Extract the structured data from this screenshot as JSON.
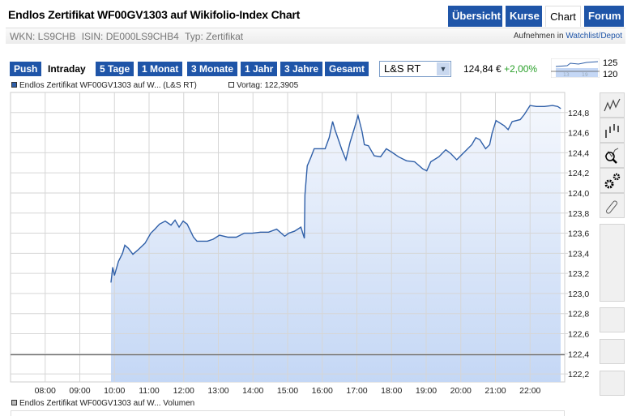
{
  "header": {
    "title": "Endlos Zertifikat WF00GV1303 auf Wikifolio-Index Chart",
    "tabs": [
      {
        "label": "Übersicht",
        "active": false
      },
      {
        "label": "Kurse",
        "active": false
      },
      {
        "label": "Chart",
        "active": true
      },
      {
        "label": "Forum",
        "active": false
      }
    ]
  },
  "info": {
    "wkn": "WKN: LS9CHB",
    "isin": "ISIN: DE000LS9CHB4",
    "typ": "Typ: Zertifikat",
    "watch_prefix": "Aufnehmen in",
    "watch_link": "Watchlist/Depot"
  },
  "ranges": [
    {
      "label": "Push",
      "active": false
    },
    {
      "label": "Intraday",
      "active": true
    },
    {
      "label": "5 Tage",
      "active": false
    },
    {
      "label": "1 Monat",
      "active": false
    },
    {
      "label": "3 Monate",
      "active": false
    },
    {
      "label": "1 Jahr",
      "active": false
    },
    {
      "label": "3 Jahre",
      "active": false
    },
    {
      "label": "Gesamt",
      "active": false
    }
  ],
  "exchange_select": {
    "value": "L&S RT"
  },
  "quote": {
    "price": "124,84 €",
    "change": "+2,00%",
    "change_color": "#2aa02a"
  },
  "sparkline": {
    "labels": [
      "125",
      "120"
    ],
    "x_labels": [
      "13",
      "19"
    ]
  },
  "legend": {
    "series": "Endlos Zertifikat WF00GV1303 auf W... (L&S RT)",
    "prev": "Vortag: 122,3905",
    "volume": "Endlos Zertifikat WF00GV1303 auf W... Volumen"
  },
  "tools": [
    {
      "icon": "line-chart-icon"
    },
    {
      "icon": "ohlc-chart-icon"
    },
    {
      "icon": "zoom-chart-icon"
    },
    {
      "icon": "settings-icon"
    },
    {
      "icon": "link-icon"
    }
  ],
  "colors": {
    "brand": "#1f55a8",
    "line": "#2f5fa8",
    "fill_top": "#f4f7fd",
    "fill_bottom": "#c4d7f5"
  },
  "chart_data": {
    "type": "area",
    "xlim": [
      "07:00",
      "23:00"
    ],
    "ylim": [
      122.12,
      125.0
    ],
    "grid": true,
    "x_ticks": [
      "08:00",
      "09:00",
      "10:00",
      "11:00",
      "12:00",
      "13:00",
      "14:00",
      "15:00",
      "16:00",
      "17:00",
      "18:00",
      "19:00",
      "20:00",
      "21:00",
      "22:00"
    ],
    "y_ticks": [
      "124,8",
      "124,6",
      "124,4",
      "124,2",
      "124,0",
      "123,8",
      "123,6",
      "123,4",
      "123,2",
      "123,0",
      "122,8",
      "122,6",
      "122,4",
      "122,2"
    ],
    "reference_line": 122.3905,
    "x": [
      "09:54",
      "09:57",
      "10:00",
      "10:07",
      "10:14",
      "10:18",
      "10:24",
      "10:32",
      "10:42",
      "10:53",
      "11:03",
      "11:10",
      "11:18",
      "11:28",
      "11:38",
      "11:45",
      "11:52",
      "11:59",
      "12:06",
      "12:17",
      "12:23",
      "12:41",
      "12:51",
      "13:02",
      "13:17",
      "13:31",
      "13:45",
      "13:59",
      "14:13",
      "14:27",
      "14:41",
      "14:55",
      "15:02",
      "15:12",
      "15:23",
      "15:29",
      "15:30",
      "15:34",
      "15:40",
      "15:46",
      "16:05",
      "16:12",
      "16:18",
      "16:22",
      "16:28",
      "16:34",
      "16:41",
      "16:48",
      "16:56",
      "17:02",
      "17:09",
      "17:13",
      "17:20",
      "17:30",
      "17:41",
      "17:51",
      "18:02",
      "18:12",
      "18:26",
      "18:40",
      "18:54",
      "19:01",
      "19:08",
      "19:22",
      "19:34",
      "19:43",
      "19:53",
      "20:05",
      "20:19",
      "20:26",
      "20:33",
      "20:43",
      "20:50",
      "20:54",
      "21:01",
      "21:15",
      "21:22",
      "21:29",
      "21:43",
      "21:50",
      "22:00",
      "22:11",
      "22:25",
      "22:39",
      "22:48",
      "22:53"
    ],
    "y": [
      123.11,
      123.26,
      123.18,
      123.32,
      123.4,
      123.48,
      123.45,
      123.39,
      123.44,
      123.5,
      123.6,
      123.64,
      123.69,
      123.72,
      123.68,
      123.73,
      123.66,
      123.72,
      123.69,
      123.56,
      123.52,
      123.52,
      123.54,
      123.58,
      123.56,
      123.56,
      123.6,
      123.6,
      123.61,
      123.61,
      123.64,
      123.57,
      123.6,
      123.62,
      123.66,
      123.55,
      123.98,
      124.27,
      124.35,
      124.44,
      124.44,
      124.55,
      124.71,
      124.63,
      124.53,
      124.43,
      124.33,
      124.5,
      124.65,
      124.77,
      124.61,
      124.48,
      124.47,
      124.37,
      124.36,
      124.44,
      124.4,
      124.36,
      124.32,
      124.31,
      124.24,
      124.22,
      124.31,
      124.36,
      124.43,
      124.39,
      124.33,
      124.4,
      124.48,
      124.55,
      124.53,
      124.44,
      124.48,
      124.59,
      124.72,
      124.67,
      124.63,
      124.71,
      124.73,
      124.78,
      124.87,
      124.86,
      124.86,
      124.87,
      124.86,
      124.84
    ]
  }
}
